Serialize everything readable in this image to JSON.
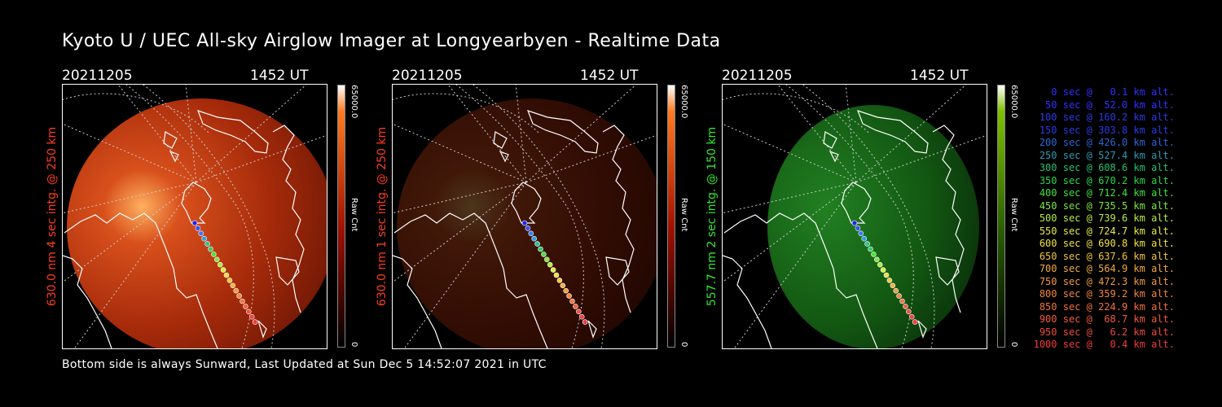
{
  "title": "Kyoto U / UEC All-sky Airglow Imager at Longyearbyen - Realtime Data",
  "footer": "Bottom side is always Sunward, Last Updated at Sun Dec  5 14:52:07 2021 in UTC",
  "panels": [
    {
      "date": "20211205",
      "time": "1452 UT",
      "label": "630.0 nm 4 sec intg. @ 250 km",
      "label_color": "#ff3b1f",
      "theme": "red",
      "brightness": 1.0,
      "cbar_max": "65000.0",
      "cbar_unit": "Raw Cnt",
      "cbar_min": "0"
    },
    {
      "date": "20211205",
      "time": "1452 UT",
      "label": "630.0 nm 1 sec intg. @ 250 km",
      "label_color": "#ff3b1f",
      "theme": "red",
      "brightness": 0.3,
      "cbar_max": "65000.0",
      "cbar_unit": "Raw Cnt",
      "cbar_min": "0"
    },
    {
      "date": "20211205",
      "time": "1452 UT",
      "label": "557.7 nm 2 sec intg. @ 150 km",
      "label_color": "#2ee82e",
      "theme": "green",
      "brightness": 0.8,
      "cbar_max": "65000.0",
      "cbar_unit": "Raw Cnt",
      "cbar_min": "0"
    }
  ],
  "legend": [
    {
      "text": "0 sec @   0.1 km alt.",
      "color": "#3030ff"
    },
    {
      "text": "50 sec @  52.0 km alt.",
      "color": "#3030ff"
    },
    {
      "text": "100 sec @ 160.2 km alt.",
      "color": "#2a3ae8"
    },
    {
      "text": "150 sec @ 303.8 km alt.",
      "color": "#2a3ae8"
    },
    {
      "text": "200 sec @ 426.0 km alt.",
      "color": "#2a68d8"
    },
    {
      "text": "250 sec @ 527.4 km alt.",
      "color": "#2a9cb0"
    },
    {
      "text": "300 sec @ 608.6 km alt.",
      "color": "#22c070"
    },
    {
      "text": "350 sec @ 670.2 km alt.",
      "color": "#26d84a"
    },
    {
      "text": "400 sec @ 712.4 km alt.",
      "color": "#3ee23a"
    },
    {
      "text": "450 sec @ 735.5 km alt.",
      "color": "#7ee83a"
    },
    {
      "text": "500 sec @ 739.6 km alt.",
      "color": "#bcec3a"
    },
    {
      "text": "550 sec @ 724.7 km alt.",
      "color": "#e6ee3a"
    },
    {
      "text": "600 sec @ 690.8 km alt.",
      "color": "#f2e23a"
    },
    {
      "text": "650 sec @ 637.6 km alt.",
      "color": "#f2c43a"
    },
    {
      "text": "700 sec @ 564.9 km alt.",
      "color": "#f2ac3a"
    },
    {
      "text": "750 sec @ 472.3 km alt.",
      "color": "#f29a3a"
    },
    {
      "text": "800 sec @ 359.2 km alt.",
      "color": "#f2863a"
    },
    {
      "text": "850 sec @ 224.9 km alt.",
      "color": "#f2723a"
    },
    {
      "text": "900 sec @  68.7 km alt.",
      "color": "#f25a3a"
    },
    {
      "text": "950 sec @   6.2 km alt.",
      "color": "#f24a3a"
    },
    {
      "text": "1000 sec @   0.4 km alt.",
      "color": "#f23a3a"
    }
  ],
  "trajectory_colors": [
    "#2020ff",
    "#2f4cff",
    "#3a78ff",
    "#2aa0e0",
    "#2ac0a0",
    "#30d060",
    "#50e040",
    "#80e840",
    "#b0ec40",
    "#d8ee40",
    "#f0e040",
    "#f2c840",
    "#f2b040",
    "#f29c40",
    "#f28840",
    "#f27440",
    "#f26040",
    "#f25040",
    "#f24040",
    "#f23a3a"
  ]
}
